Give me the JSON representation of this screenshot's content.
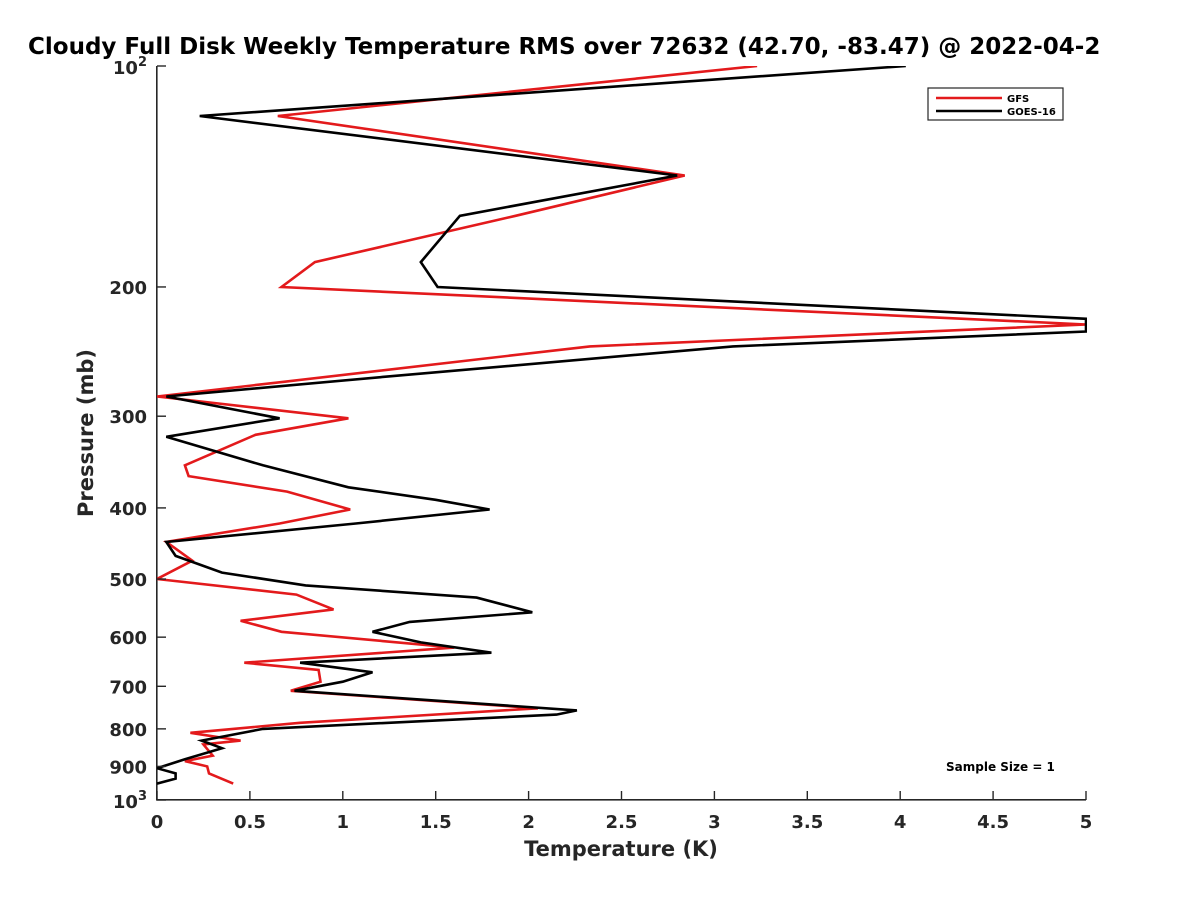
{
  "chart_data": {
    "type": "line",
    "title": "Cloudy Full Disk Weekly Temperature RMS over 72632 (42.70, -83.47) @ 2022-04-2",
    "xlabel": "Temperature (K)",
    "ylabel": "Pressure (mb)",
    "xlim": [
      0,
      5
    ],
    "ylim": [
      100,
      1000
    ],
    "y_scale": "log",
    "y_reversed": true,
    "grid": false,
    "legend_position": "top-right",
    "x_ticks": [
      "0",
      "0.5",
      "1",
      "1.5",
      "2",
      "2.5",
      "3",
      "3.5",
      "4",
      "4.5",
      "5"
    ],
    "y_ticks": [
      {
        "value": 100,
        "base": "10",
        "exp": "2"
      },
      {
        "value": 200,
        "label": "200"
      },
      {
        "value": 300,
        "label": "300"
      },
      {
        "value": 400,
        "label": "400"
      },
      {
        "value": 500,
        "label": "500"
      },
      {
        "value": 600,
        "label": "600"
      },
      {
        "value": 700,
        "label": "700"
      },
      {
        "value": 800,
        "label": "800"
      },
      {
        "value": 900,
        "label": "900"
      },
      {
        "value": 1000,
        "base": "10",
        "exp": "3"
      }
    ],
    "annotation": "Sample Size = 1",
    "series": [
      {
        "name": "GFS",
        "color": "#e31a1c",
        "points": [
          [
            3.23,
            100
          ],
          [
            0.65,
            117
          ],
          [
            2.84,
            141
          ],
          [
            1.93,
            160
          ],
          [
            0.85,
            185
          ],
          [
            0.67,
            200
          ],
          [
            5.0,
            225
          ],
          [
            2.33,
            241
          ],
          [
            0.7,
            269
          ],
          [
            0.0,
            282
          ],
          [
            1.03,
            302
          ],
          [
            0.53,
            318
          ],
          [
            0.15,
            350
          ],
          [
            0.17,
            362
          ],
          [
            0.7,
            380
          ],
          [
            1.04,
            402
          ],
          [
            0.66,
            420
          ],
          [
            0.05,
            445
          ],
          [
            0.19,
            472
          ],
          [
            0.0,
            500
          ],
          [
            0.75,
            525
          ],
          [
            0.95,
            550
          ],
          [
            0.45,
            570
          ],
          [
            0.67,
            590
          ],
          [
            1.6,
            620
          ],
          [
            0.47,
            650
          ],
          [
            0.87,
            665
          ],
          [
            0.88,
            690
          ],
          [
            0.72,
            710
          ],
          [
            2.05,
            750
          ],
          [
            0.77,
            785
          ],
          [
            0.18,
            810
          ],
          [
            0.45,
            830
          ],
          [
            0.25,
            840
          ],
          [
            0.3,
            870
          ],
          [
            0.15,
            885
          ],
          [
            0.27,
            900
          ],
          [
            0.28,
            920
          ],
          [
            0.41,
            950
          ]
        ]
      },
      {
        "name": "GOES-16",
        "color": "#000000",
        "points": [
          [
            4.03,
            100
          ],
          [
            0.23,
            117
          ],
          [
            2.8,
            141
          ],
          [
            1.63,
            160
          ],
          [
            1.42,
            185
          ],
          [
            1.51,
            200
          ],
          [
            5.0,
            221
          ],
          [
            5.0,
            230
          ],
          [
            3.1,
            241
          ],
          [
            1.23,
            265
          ],
          [
            0.05,
            282
          ],
          [
            0.66,
            302
          ],
          [
            0.05,
            320
          ],
          [
            0.57,
            350
          ],
          [
            1.03,
            375
          ],
          [
            1.5,
            390
          ],
          [
            1.79,
            402
          ],
          [
            1.07,
            420
          ],
          [
            0.05,
            445
          ],
          [
            0.1,
            465
          ],
          [
            0.35,
            490
          ],
          [
            0.8,
            510
          ],
          [
            1.72,
            530
          ],
          [
            2.02,
            555
          ],
          [
            1.36,
            572
          ],
          [
            1.16,
            590
          ],
          [
            1.42,
            610
          ],
          [
            1.8,
            630
          ],
          [
            0.77,
            650
          ],
          [
            1.16,
            670
          ],
          [
            1.0,
            690
          ],
          [
            0.74,
            710
          ],
          [
            2.26,
            755
          ],
          [
            2.15,
            765
          ],
          [
            0.57,
            800
          ],
          [
            0.24,
            830
          ],
          [
            0.35,
            850
          ],
          [
            0.15,
            880
          ],
          [
            0.0,
            905
          ],
          [
            0.1,
            920
          ],
          [
            0.1,
            935
          ],
          [
            0.0,
            950
          ]
        ]
      }
    ]
  }
}
